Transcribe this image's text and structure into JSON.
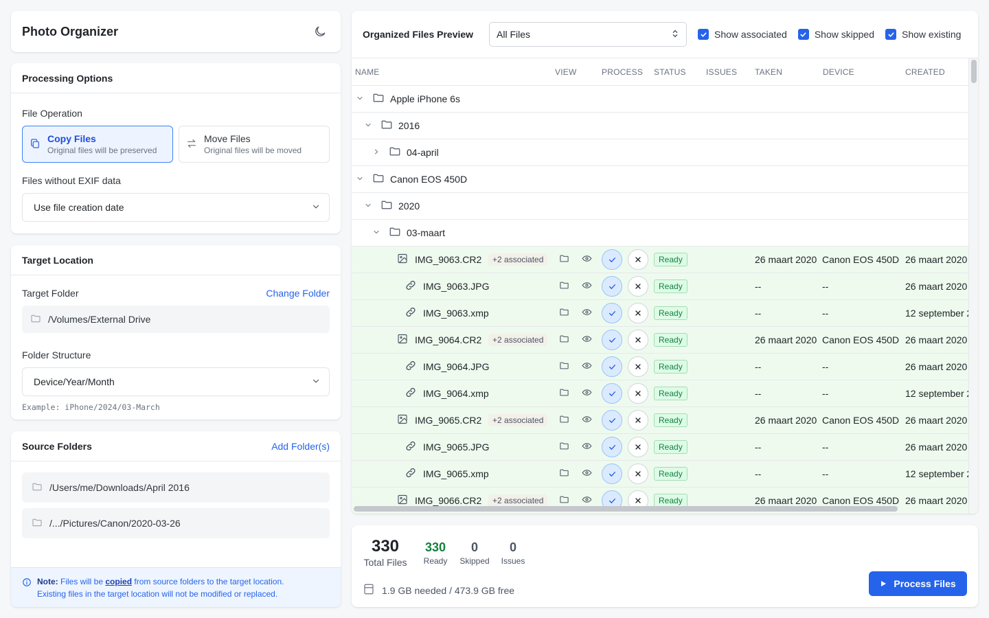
{
  "app": {
    "title": "Photo Organizer",
    "theme_icon": "moon-icon"
  },
  "processing": {
    "title": "Processing Options",
    "file_operation_label": "File Operation",
    "copy": {
      "title": "Copy Files",
      "subtitle": "Original files will be preserved",
      "selected": true
    },
    "move": {
      "title": "Move Files",
      "subtitle": "Original files will be moved",
      "selected": false
    },
    "exif_label": "Files without EXIF data",
    "exif_value": "Use file creation date"
  },
  "target": {
    "title": "Target Location",
    "folder_label": "Target Folder",
    "change_folder": "Change Folder",
    "path": "/Volumes/External Drive",
    "structure_label": "Folder Structure",
    "structure_value": "Device/Year/Month",
    "example": "Example: iPhone/2024/03-March"
  },
  "sources": {
    "title": "Source Folders",
    "add_folder": "Add Folder(s)",
    "folders": [
      "/Users/me/Downloads/April 2016",
      "/.../Pictures/Canon/2020-03-26"
    ],
    "note_prefix": "Note:",
    "note_a": " Files will be ",
    "note_em": "copied",
    "note_b": " from source folders to the target location.",
    "note_line2": "Existing files in the target location will not be modified or replaced."
  },
  "preview": {
    "title": "Organized Files Preview",
    "filter_value": "All Files",
    "show_associated": "Show associated",
    "show_skipped": "Show skipped",
    "show_existing": "Show existing",
    "columns": {
      "name": "NAME",
      "view": "VIEW",
      "process": "PROCESS",
      "status": "STATUS",
      "issues": "ISSUES",
      "taken": "TAKEN",
      "device": "DEVICE",
      "created": "CREATED"
    },
    "tree": [
      {
        "name": "Apple iPhone 6s",
        "expanded": true
      },
      {
        "name": "2016",
        "expanded": true
      },
      {
        "name": "04-april",
        "expanded": false
      },
      {
        "name": "Canon EOS 450D",
        "expanded": true
      },
      {
        "name": "2020",
        "expanded": true
      },
      {
        "name": "03-maart",
        "expanded": true
      }
    ],
    "files": [
      {
        "name": "IMG_9063.CR2",
        "assoc": "+2 associated",
        "status": "Ready",
        "taken": "26 maart 2020",
        "device": "Canon EOS 450D",
        "created": "26 maart 2020"
      },
      {
        "name": "IMG_9063.JPG",
        "assoc": "",
        "status": "Ready",
        "taken": "--",
        "device": "--",
        "created": "26 maart 2020"
      },
      {
        "name": "IMG_9063.xmp",
        "assoc": "",
        "status": "Ready",
        "taken": "--",
        "device": "--",
        "created": "12 september 2"
      },
      {
        "name": "IMG_9064.CR2",
        "assoc": "+2 associated",
        "status": "Ready",
        "taken": "26 maart 2020",
        "device": "Canon EOS 450D",
        "created": "26 maart 2020"
      },
      {
        "name": "IMG_9064.JPG",
        "assoc": "",
        "status": "Ready",
        "taken": "--",
        "device": "--",
        "created": "26 maart 2020"
      },
      {
        "name": "IMG_9064.xmp",
        "assoc": "",
        "status": "Ready",
        "taken": "--",
        "device": "--",
        "created": "12 september 2"
      },
      {
        "name": "IMG_9065.CR2",
        "assoc": "+2 associated",
        "status": "Ready",
        "taken": "26 maart 2020",
        "device": "Canon EOS 450D",
        "created": "26 maart 2020"
      },
      {
        "name": "IMG_9065.JPG",
        "assoc": "",
        "status": "Ready",
        "taken": "--",
        "device": "--",
        "created": "26 maart 2020"
      },
      {
        "name": "IMG_9065.xmp",
        "assoc": "",
        "status": "Ready",
        "taken": "--",
        "device": "--",
        "created": "12 september 2"
      },
      {
        "name": "IMG_9066.CR2",
        "assoc": "+2 associated",
        "status": "Ready",
        "taken": "26 maart 2020",
        "device": "Canon EOS 450D",
        "created": "26 maart 2020"
      }
    ]
  },
  "stats": {
    "total": {
      "value": "330",
      "label": "Total Files"
    },
    "ready": {
      "value": "330",
      "label": "Ready"
    },
    "skipped": {
      "value": "0",
      "label": "Skipped"
    },
    "issues": {
      "value": "0",
      "label": "Issues"
    },
    "disk": "1.9 GB needed / 473.9 GB free",
    "process_button": "Process Files"
  },
  "colors": {
    "accent": "#2563eb",
    "ready_green": "#15803d",
    "file_row_bg": "#eefaee"
  }
}
